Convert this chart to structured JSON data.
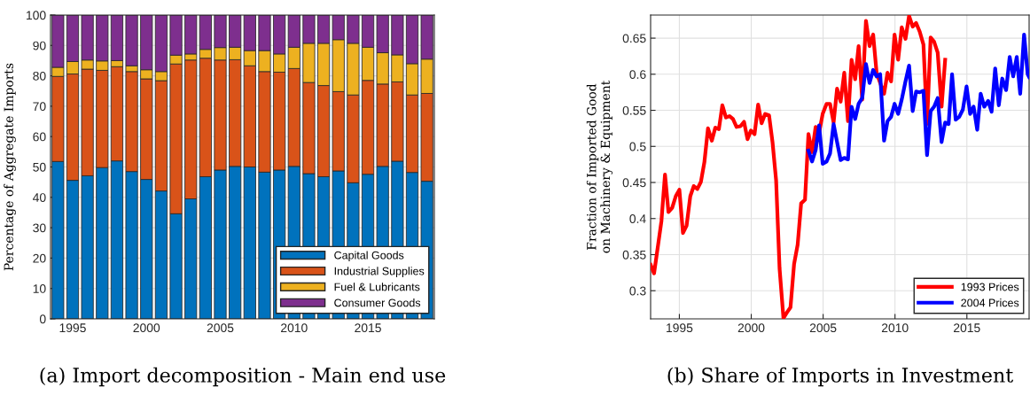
{
  "chart_data": [
    {
      "type": "bar",
      "stacked": true,
      "ylabel": "Percentage of Aggregate Imports",
      "annotations": [
        "(a) Import decomposition - Main end use"
      ],
      "x": [
        1994,
        1995,
        1996,
        1997,
        1998,
        1999,
        2000,
        2001,
        2002,
        2003,
        2004,
        2005,
        2006,
        2007,
        2008,
        2009,
        2010,
        2011,
        2012,
        2013,
        2014,
        2015,
        2016,
        2017,
        2018,
        2019
      ],
      "series": [
        {
          "name": "Capital Goods",
          "color": "#0072bd",
          "values": [
            51.8,
            45.6,
            47.1,
            49.8,
            52.0,
            48.5,
            45.9,
            42.1,
            34.6,
            39.5,
            46.8,
            49.0,
            50.2,
            50.0,
            48.3,
            49.0,
            50.2,
            47.8,
            46.8,
            48.7,
            44.8,
            47.6,
            50.2,
            51.9,
            48.2,
            45.3
          ]
        },
        {
          "name": "Industrial Supplies",
          "color": "#d95319",
          "values": [
            28.0,
            35.0,
            35.1,
            32.0,
            31.0,
            32.9,
            33.1,
            36.3,
            49.3,
            45.7,
            39.0,
            36.2,
            35.1,
            33.3,
            33.1,
            32.2,
            32.2,
            30.0,
            30.0,
            26.1,
            28.9,
            30.9,
            27.1,
            26.1,
            25.5,
            28.9
          ]
        },
        {
          "name": "Fuel & Lubricants",
          "color": "#edb120",
          "values": [
            3.0,
            4.1,
            3.0,
            3.1,
            2.0,
            1.9,
            3.0,
            3.0,
            2.9,
            2.0,
            2.9,
            4.1,
            4.1,
            5.0,
            6.9,
            6.0,
            7.0,
            12.9,
            13.9,
            17.1,
            17.0,
            10.9,
            10.3,
            8.9,
            10.3,
            11.3
          ]
        },
        {
          "name": "Consumer Goods",
          "color": "#7e2f8e",
          "values": [
            17.2,
            15.3,
            14.8,
            15.1,
            15.0,
            16.7,
            18.0,
            18.6,
            13.2,
            12.8,
            11.3,
            10.7,
            10.6,
            11.7,
            11.7,
            12.8,
            10.6,
            9.3,
            9.3,
            8.1,
            9.3,
            10.6,
            12.4,
            13.1,
            16.0,
            14.5
          ]
        }
      ],
      "xlim": [
        1993.5,
        2019.5
      ],
      "xticks": [
        1995,
        2000,
        2005,
        2010,
        2015
      ],
      "ylim": [
        0,
        100
      ],
      "yticks": [
        0,
        10,
        20,
        30,
        40,
        50,
        60,
        70,
        80,
        90,
        100
      ],
      "grid": true,
      "legend": "bottom right"
    },
    {
      "type": "line",
      "ylabel": "Fraction of Imported Good\non Machinery & Equipment",
      "annotations": [
        "(b) Share of Imports in Investment"
      ],
      "series": [
        {
          "name": "1993 Prices",
          "color": "#ff0000",
          "x": [
            1993.0,
            1993.24,
            1993.75,
            1994.0,
            1994.24,
            1994.5,
            1994.75,
            1995.0,
            1995.25,
            1995.5,
            1995.76,
            1996.0,
            1996.25,
            1996.5,
            1996.74,
            1996.99,
            1997.26,
            1997.5,
            1997.75,
            1997.99,
            1998.24,
            1998.49,
            1998.73,
            1998.98,
            1999.25,
            1999.5,
            1999.74,
            1999.98,
            2000.23,
            2000.48,
            2000.72,
            2000.97,
            2001.24,
            2001.48,
            2001.73,
            2001.97,
            2002.24,
            2002.49,
            2002.73,
            2002.98,
            2003.23,
            2003.47,
            2003.74,
            2003.98,
            2004.23,
            2004.48,
            2004.72,
            2004.97,
            2005.24,
            2005.48,
            2005.73,
            2005.97,
            2006.22,
            2006.47,
            2006.73,
            2006.98,
            2007.23,
            2007.47,
            2007.72,
            2007.98,
            2008.23,
            2008.48,
            2008.72,
            2008.97,
            2009.24,
            2009.48,
            2009.73,
            2009.97,
            2010.22,
            2010.47,
            2010.73,
            2010.98,
            2011.23,
            2011.47,
            2011.72,
            2011.98,
            2012.23,
            2012.48,
            2012.72,
            2012.97,
            2013.24,
            2013.49
          ],
          "values": [
            0.336,
            0.324,
            0.396,
            0.461,
            0.409,
            0.415,
            0.431,
            0.44,
            0.38,
            0.39,
            0.431,
            0.445,
            0.441,
            0.451,
            0.478,
            0.525,
            0.508,
            0.526,
            0.524,
            0.557,
            0.54,
            0.542,
            0.538,
            0.527,
            0.528,
            0.534,
            0.51,
            0.522,
            0.517,
            0.558,
            0.532,
            0.545,
            0.543,
            0.506,
            0.453,
            0.331,
            0.262,
            0.27,
            0.277,
            0.337,
            0.364,
            0.421,
            0.426,
            0.517,
            0.492,
            0.527,
            0.519,
            0.545,
            0.559,
            0.559,
            0.533,
            0.58,
            0.562,
            0.602,
            0.535,
            0.62,
            0.593,
            0.639,
            0.565,
            0.674,
            0.639,
            0.655,
            0.602,
            0.588,
            0.573,
            0.602,
            0.59,
            0.655,
            0.62,
            0.665,
            0.649,
            0.681,
            0.666,
            0.671,
            0.659,
            0.641,
            0.531,
            0.651,
            0.645,
            0.63,
            0.555,
            0.62
          ]
        },
        {
          "name": "2004 Prices",
          "color": "#0000ff",
          "x": [
            2003.98,
            2004.23,
            2004.48,
            2004.72,
            2004.97,
            2005.24,
            2005.48,
            2005.73,
            2005.97,
            2006.22,
            2006.47,
            2006.73,
            2006.98,
            2007.23,
            2007.47,
            2007.72,
            2007.98,
            2008.23,
            2008.48,
            2008.72,
            2008.97,
            2009.24,
            2009.48,
            2009.73,
            2009.97,
            2010.22,
            2010.47,
            2010.73,
            2010.98,
            2011.23,
            2011.47,
            2011.72,
            2011.98,
            2012.23,
            2012.48,
            2012.72,
            2012.97,
            2013.24,
            2013.49,
            2013.73,
            2013.97,
            2014.22,
            2014.47,
            2014.72,
            2014.98,
            2015.23,
            2015.47,
            2015.72,
            2015.96,
            2016.21,
            2016.48,
            2016.72,
            2016.97,
            2017.22,
            2017.46,
            2017.73,
            2017.98,
            2018.22,
            2018.47,
            2018.71,
            2018.98,
            2019.23,
            2019.33
          ],
          "values": [
            0.494,
            0.479,
            0.495,
            0.529,
            0.476,
            0.479,
            0.49,
            0.531,
            0.506,
            0.481,
            0.484,
            0.482,
            0.555,
            0.538,
            0.559,
            0.567,
            0.614,
            0.588,
            0.606,
            0.597,
            0.6,
            0.508,
            0.535,
            0.541,
            0.559,
            0.545,
            0.565,
            0.59,
            0.612,
            0.549,
            0.576,
            0.575,
            0.577,
            0.488,
            0.549,
            0.555,
            0.567,
            0.506,
            0.533,
            0.531,
            0.6,
            0.537,
            0.541,
            0.551,
            0.583,
            0.545,
            0.555,
            0.523,
            0.573,
            0.555,
            0.563,
            0.548,
            0.608,
            0.557,
            0.594,
            0.578,
            0.624,
            0.597,
            0.624,
            0.573,
            0.655,
            0.6,
            0.596
          ]
        }
      ],
      "xlim": [
        1993,
        2019.33
      ],
      "xticks": [
        1995,
        2000,
        2005,
        2010,
        2015
      ],
      "ylim": [
        0.261,
        0.682
      ],
      "yticks": [
        0.3,
        0.35,
        0.4,
        0.45,
        0.5,
        0.55,
        0.6,
        0.65
      ],
      "grid": true,
      "legend": "bottom right",
      "line_style": "solid",
      "marker": "none"
    }
  ]
}
